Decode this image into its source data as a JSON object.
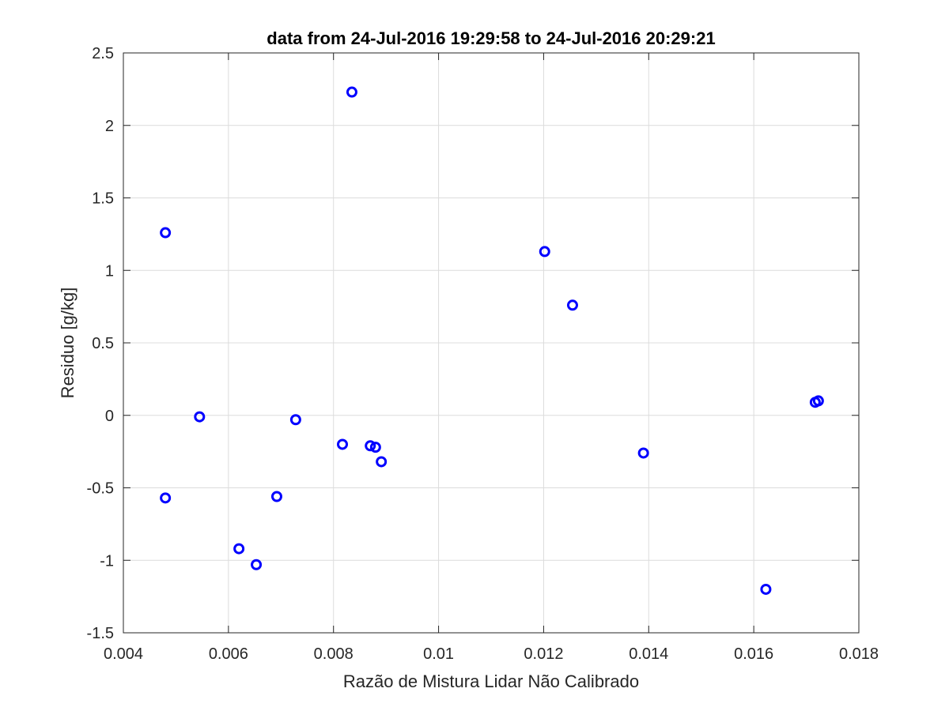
{
  "chart_data": {
    "type": "scatter",
    "title": "data from 24-Jul-2016 19:29:58 to 24-Jul-2016 20:29:21",
    "xlabel": "Razão de Mistura Lidar Não Calibrado",
    "ylabel": "Residuo [g/kg]",
    "xlim": [
      0.004,
      0.018
    ],
    "ylim": [
      -1.5,
      2.5
    ],
    "x_ticks": [
      0.004,
      0.006,
      0.008,
      0.01,
      0.012,
      0.014,
      0.016,
      0.018
    ],
    "x_tick_labels": [
      "0.004",
      "0.006",
      "0.008",
      "0.01",
      "0.012",
      "0.014",
      "0.016",
      "0.018"
    ],
    "y_ticks": [
      -1.5,
      -1,
      -0.5,
      0,
      0.5,
      1,
      1.5,
      2,
      2.5
    ],
    "y_tick_labels": [
      "-1.5",
      "-1",
      "-0.5",
      "0",
      "0.5",
      "1",
      "1.5",
      "2",
      "2.5"
    ],
    "grid": true,
    "marker": "circle-open",
    "marker_color": "#0000ff",
    "points": [
      {
        "x": 0.0048,
        "y": 1.26
      },
      {
        "x": 0.0048,
        "y": -0.57
      },
      {
        "x": 0.00545,
        "y": -0.01
      },
      {
        "x": 0.0062,
        "y": -0.92
      },
      {
        "x": 0.00653,
        "y": -1.03
      },
      {
        "x": 0.00692,
        "y": -0.56
      },
      {
        "x": 0.00728,
        "y": -0.03
      },
      {
        "x": 0.00817,
        "y": -0.2
      },
      {
        "x": 0.00835,
        "y": 2.23
      },
      {
        "x": 0.0087,
        "y": -0.21
      },
      {
        "x": 0.0088,
        "y": -0.22
      },
      {
        "x": 0.00891,
        "y": -0.32
      },
      {
        "x": 0.01202,
        "y": 1.13
      },
      {
        "x": 0.01255,
        "y": 0.76
      },
      {
        "x": 0.0139,
        "y": -0.26
      },
      {
        "x": 0.01623,
        "y": -1.2
      },
      {
        "x": 0.01717,
        "y": 0.09
      },
      {
        "x": 0.01723,
        "y": 0.1
      }
    ]
  }
}
